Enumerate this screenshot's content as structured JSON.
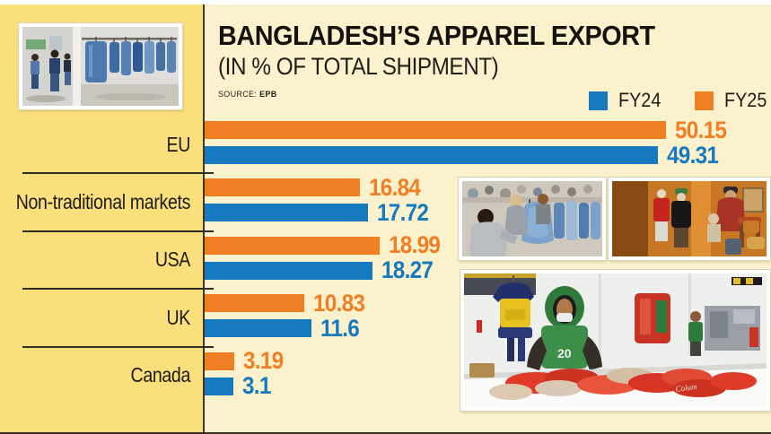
{
  "header": {
    "title": "BANGLADESH’S APPAREL EXPORT",
    "subtitle": "(IN % OF TOTAL SHIPMENT)",
    "source_label": "SOURCE:",
    "source_value": "EPB"
  },
  "legend": [
    {
      "label": "FY24",
      "color": "#1779be"
    },
    {
      "label": "FY25",
      "color": "#f07f23"
    }
  ],
  "chart_data": {
    "type": "bar",
    "orientation": "horizontal",
    "title": "BANGLADESH’S APPAREL EXPORT (IN % OF TOTAL SHIPMENT)",
    "source": "EPB",
    "categories": [
      "EU",
      "Non-traditional markets",
      "USA",
      "UK",
      "Canada"
    ],
    "series": [
      {
        "name": "FY25",
        "color": "#f07f23",
        "values": [
          50.15,
          16.84,
          18.99,
          10.83,
          3.19
        ]
      },
      {
        "name": "FY24",
        "color": "#1779be",
        "values": [
          49.31,
          17.72,
          18.27,
          11.6,
          3.1
        ]
      }
    ],
    "xlim": [
      0,
      55
    ],
    "value_labels": true,
    "legend_position": "top-right",
    "note": "FY25 bar drawn above FY24 bar within each category"
  },
  "colors": {
    "background_cream": "#fbf2cd",
    "panel_yellow": "#fcdf7d",
    "axis_dark": "#3a372c",
    "accent_blue": "#1779be",
    "accent_orange": "#f07f23"
  },
  "photos": {
    "denim_showroom": {
      "name": "denim-showroom-photo"
    },
    "knitwear_market": {
      "name": "knitwear-market-photo"
    },
    "boutique_window": {
      "name": "boutique-window-photo"
    },
    "garment_factory": {
      "name": "garment-factory-photo",
      "vest_badge": "20",
      "garment_brand": "Colum"
    }
  }
}
